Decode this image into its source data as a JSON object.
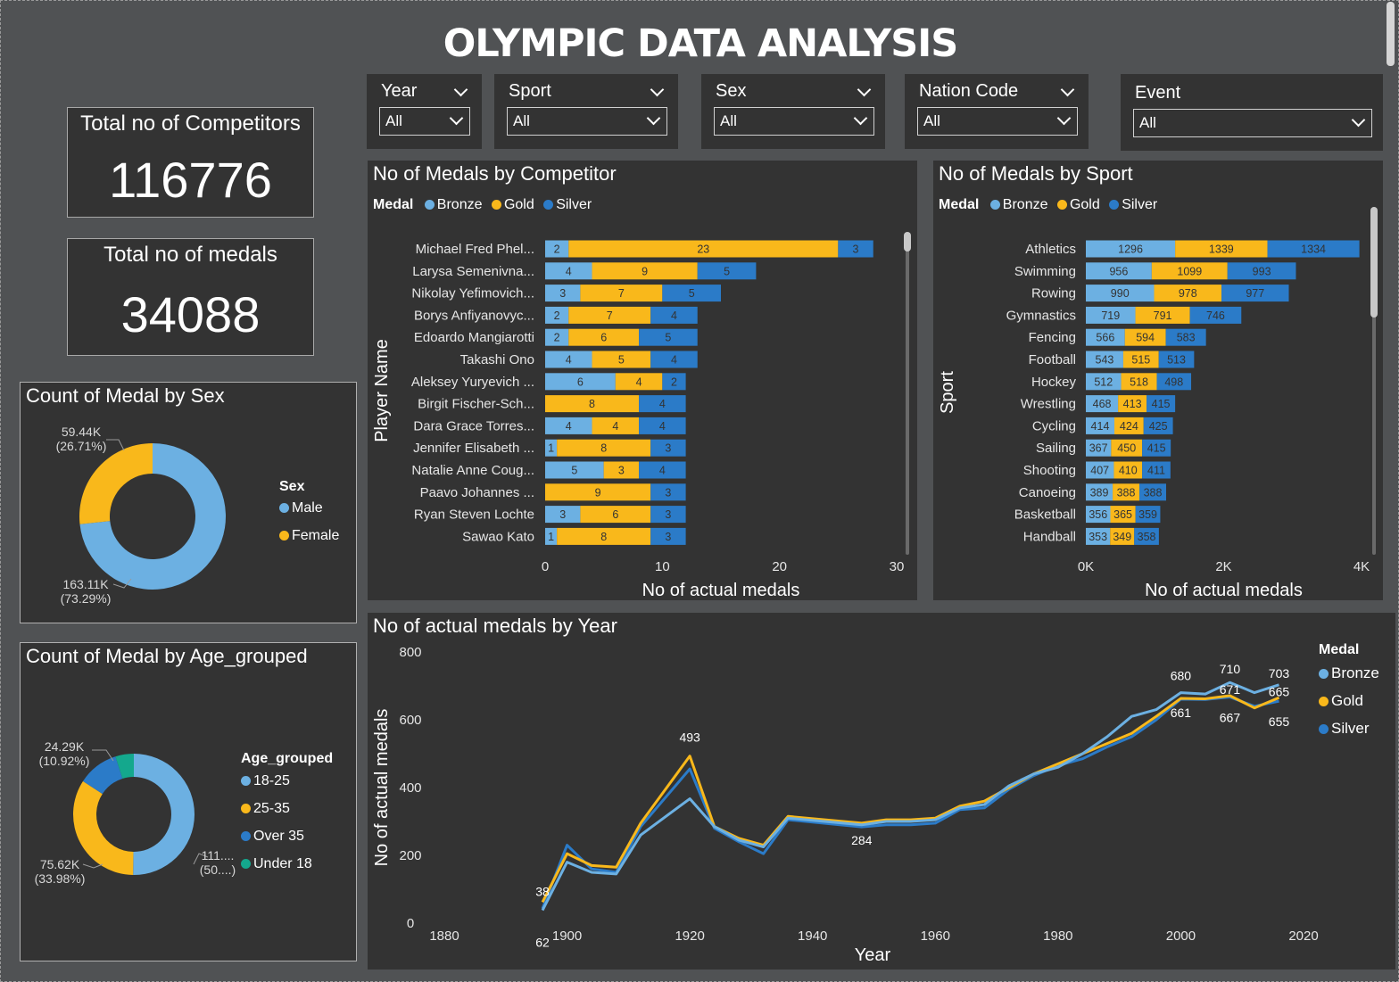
{
  "title": "OLYMPIC DATA ANALYSIS",
  "colors": {
    "bronze": "#6cb0e2",
    "gold": "#f9b81b",
    "silver": "#2b7bc8",
    "teal": "#14a88d",
    "card": "#333333",
    "page": "#505254"
  },
  "filters": [
    {
      "label": "Year",
      "value": "All"
    },
    {
      "label": "Sport",
      "value": "All"
    },
    {
      "label": "Sex",
      "value": "All"
    },
    {
      "label": "Nation Code",
      "value": "All"
    },
    {
      "label": "Event",
      "value": "All"
    }
  ],
  "kpis": {
    "competitors": {
      "label": "Total no of Competitors",
      "value": "116776"
    },
    "medals": {
      "label": "Total no of medals",
      "value": "34088"
    }
  },
  "sex_chart": {
    "title": "Count of Medal by Sex",
    "legend_title": "Sex",
    "slices": [
      {
        "name": "Male",
        "value": "163.11K",
        "pct": "(73.29%)",
        "share": 73.29,
        "color": "#6cb0e2"
      },
      {
        "name": "Female",
        "value": "59.44K",
        "pct": "(26.71%)",
        "share": 26.71,
        "color": "#f9b81b"
      }
    ]
  },
  "age_chart": {
    "title": "Count of Medal by Age_grouped",
    "legend_title": "Age_grouped",
    "slices": [
      {
        "name": "18-25",
        "value": "111....",
        "pct": "(50....)",
        "share": 50.2,
        "color": "#6cb0e2"
      },
      {
        "name": "25-35",
        "value": "75.62K",
        "pct": "(33.98%)",
        "share": 33.98,
        "color": "#f9b81b"
      },
      {
        "name": "Over 35",
        "value": "24.29K",
        "pct": "(10.92%)",
        "share": 10.92,
        "color": "#2b7bc8"
      },
      {
        "name": "Under 18",
        "value": "",
        "pct": "",
        "share": 4.9,
        "color": "#14a88d"
      }
    ]
  },
  "competitor_chart": {
    "title": "No of Medals by Competitor",
    "legend_title": "Medal",
    "legend": [
      "Bronze",
      "Gold",
      "Silver"
    ],
    "ylabel": "Player Name",
    "xlabel": "No of actual medals",
    "xticks": [
      "0",
      "10",
      "20",
      "30"
    ],
    "xmax": 30,
    "rows": [
      {
        "name": "Michael Fred Phel...",
        "bronze": 2,
        "gold": 23,
        "silver": 3
      },
      {
        "name": "Larysa Semenivna...",
        "bronze": 4,
        "gold": 9,
        "silver": 5
      },
      {
        "name": "Nikolay Yefimovich...",
        "bronze": 3,
        "gold": 7,
        "silver": 5
      },
      {
        "name": "Borys Anfiyanovyc...",
        "bronze": 2,
        "gold": 7,
        "silver": 4
      },
      {
        "name": "Edoardo Mangiarotti",
        "bronze": 2,
        "gold": 6,
        "silver": 5
      },
      {
        "name": "Takashi Ono",
        "bronze": 4,
        "gold": 5,
        "silver": 4
      },
      {
        "name": "Aleksey Yuryevich ...",
        "bronze": 6,
        "gold": 4,
        "silver": 2
      },
      {
        "name": "Birgit Fischer-Sch...",
        "bronze": 0,
        "gold": 8,
        "silver": 4
      },
      {
        "name": "Dara Grace Torres...",
        "bronze": 4,
        "gold": 4,
        "silver": 4
      },
      {
        "name": "Jennifer Elisabeth ...",
        "bronze": 1,
        "gold": 8,
        "silver": 3
      },
      {
        "name": "Natalie Anne Coug...",
        "bronze": 5,
        "gold": 3,
        "silver": 4
      },
      {
        "name": "Paavo Johannes ...",
        "bronze": 0,
        "gold": 9,
        "silver": 3
      },
      {
        "name": "Ryan Steven Lochte",
        "bronze": 3,
        "gold": 6,
        "silver": 3
      },
      {
        "name": "Sawao Kato",
        "bronze": 1,
        "gold": 8,
        "silver": 3
      }
    ]
  },
  "sport_chart": {
    "title": "No of Medals by Sport",
    "legend_title": "Medal",
    "legend": [
      "Bronze",
      "Gold",
      "Silver"
    ],
    "ylabel": "Sport",
    "xlabel": "No of actual medals",
    "xticks": [
      "0K",
      "2K",
      "4K"
    ],
    "xmax": 4000,
    "rows": [
      {
        "name": "Athletics",
        "bronze": 1296,
        "gold": 1339,
        "silver": 1334
      },
      {
        "name": "Swimming",
        "bronze": 956,
        "gold": 1099,
        "silver": 993
      },
      {
        "name": "Rowing",
        "bronze": 990,
        "gold": 978,
        "silver": 977
      },
      {
        "name": "Gymnastics",
        "bronze": 719,
        "gold": 791,
        "silver": 746
      },
      {
        "name": "Fencing",
        "bronze": 566,
        "gold": 594,
        "silver": 583
      },
      {
        "name": "Football",
        "bronze": 543,
        "gold": 515,
        "silver": 513
      },
      {
        "name": "Hockey",
        "bronze": 512,
        "gold": 518,
        "silver": 498
      },
      {
        "name": "Wrestling",
        "bronze": 468,
        "gold": 413,
        "silver": 415
      },
      {
        "name": "Cycling",
        "bronze": 414,
        "gold": 424,
        "silver": 425
      },
      {
        "name": "Sailing",
        "bronze": 367,
        "gold": 450,
        "silver": 415
      },
      {
        "name": "Shooting",
        "bronze": 407,
        "gold": 410,
        "silver": 411
      },
      {
        "name": "Canoeing",
        "bronze": 389,
        "gold": 388,
        "silver": 388
      },
      {
        "name": "Basketball",
        "bronze": 356,
        "gold": 365,
        "silver": 359
      },
      {
        "name": "Handball",
        "bronze": 353,
        "gold": 349,
        "silver": 358
      }
    ]
  },
  "chart_data": {
    "type": "line",
    "title": "No of actual medals by Year",
    "xlabel": "Year",
    "ylabel": "No of actual medals",
    "xlim": [
      1880,
      2020
    ],
    "ylim": [
      0,
      800
    ],
    "xticks": [
      "1880",
      "1900",
      "1920",
      "1940",
      "1960",
      "1980",
      "2000",
      "2020"
    ],
    "yticks": [
      "0",
      "200",
      "400",
      "600",
      "800"
    ],
    "legend_title": "Medal",
    "x": [
      1896,
      1900,
      1904,
      1908,
      1912,
      1920,
      1924,
      1928,
      1932,
      1936,
      1948,
      1952,
      1956,
      1960,
      1964,
      1968,
      1972,
      1976,
      1980,
      1984,
      1988,
      1992,
      1996,
      2000,
      2004,
      2008,
      2012,
      2016
    ],
    "series": [
      {
        "name": "Bronze",
        "color": "#6cb0e2",
        "values": [
          38,
          180,
          150,
          145,
          260,
          367,
          285,
          245,
          225,
          310,
          290,
          300,
          300,
          305,
          340,
          350,
          405,
          440,
          460,
          500,
          550,
          610,
          630,
          680,
          676,
          710,
          680,
          703
        ]
      },
      {
        "name": "Gold",
        "color": "#f9b81b",
        "values": [
          62,
          205,
          170,
          165,
          295,
          493,
          285,
          250,
          230,
          315,
          295,
          305,
          305,
          310,
          345,
          360,
          400,
          440,
          470,
          500,
          530,
          560,
          610,
          663,
          662,
          671,
          635,
          665
        ]
      },
      {
        "name": "Silver",
        "color": "#2b7bc8",
        "values": [
          43,
          230,
          160,
          150,
          285,
          455,
          280,
          240,
          205,
          305,
          284,
          290,
          290,
          295,
          335,
          340,
          395,
          435,
          465,
          485,
          520,
          550,
          600,
          661,
          660,
          667,
          640,
          655
        ]
      }
    ],
    "annotations": [
      {
        "x": 1896,
        "y": 38,
        "label": "38",
        "dy": -16
      },
      {
        "x": 1896,
        "y": 62,
        "label": "62",
        "dy": 50
      },
      {
        "x": 1920,
        "y": 493,
        "label": "493",
        "dy": -16
      },
      {
        "x": 1948,
        "y": 284,
        "label": "284",
        "dy": 20
      },
      {
        "x": 2000,
        "y": 680,
        "label": "680",
        "dy": -14
      },
      {
        "x": 2000,
        "y": 661,
        "label": "661",
        "dy": 20
      },
      {
        "x": 2008,
        "y": 710,
        "label": "710",
        "dy": -10
      },
      {
        "x": 2008,
        "y": 671,
        "label": "671",
        "dy": -2
      },
      {
        "x": 2008,
        "y": 667,
        "label": "667",
        "dy": 28
      },
      {
        "x": 2016,
        "y": 703,
        "label": "703",
        "dy": -8
      },
      {
        "x": 2016,
        "y": 665,
        "label": "665",
        "dy": -2
      },
      {
        "x": 2016,
        "y": 655,
        "label": "655",
        "dy": 28
      }
    ]
  }
}
